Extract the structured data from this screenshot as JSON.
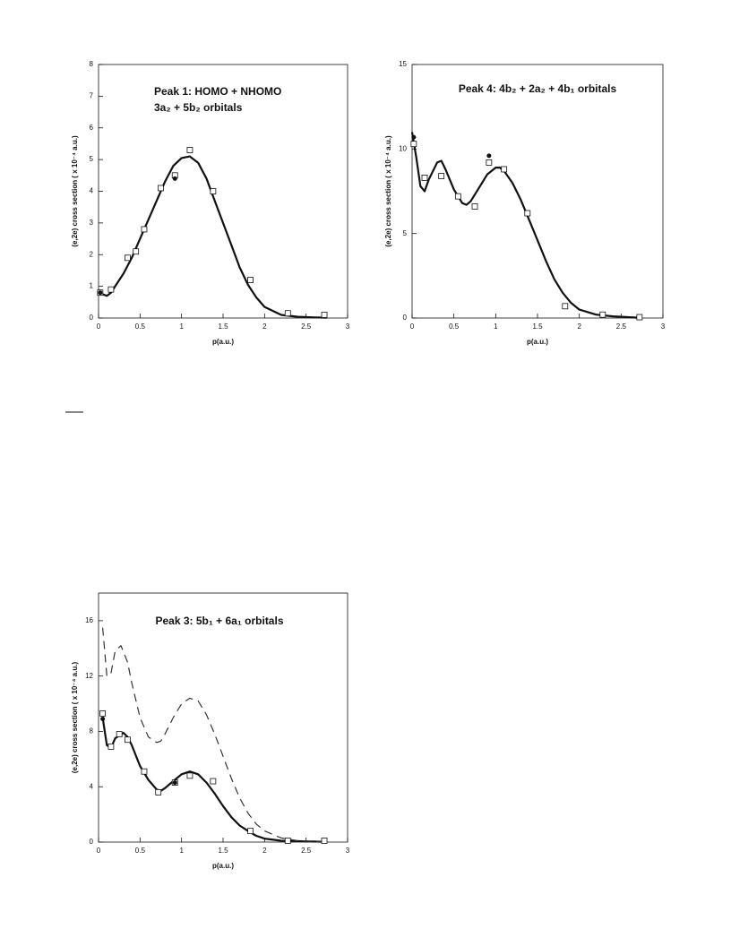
{
  "chart_data": [
    {
      "type": "line",
      "annotations": [
        "Peak 1: HOMO + NHOMO",
        "3a₂ + 5b₂ orbitals"
      ],
      "xlabel": "p(a.u.)",
      "ylabel": "(e,2e) cross section ( x 10⁻⁴ a.u.)",
      "xlim": [
        0,
        3
      ],
      "ylim": [
        0,
        8
      ],
      "xticks": [
        0,
        0.5,
        1,
        1.5,
        2,
        2.5,
        3
      ],
      "yticks": [
        0,
        1,
        2,
        3,
        4,
        5,
        6,
        7,
        8
      ],
      "series": [
        {
          "color": "#111111",
          "style": "solid",
          "x": [
            0,
            0.05,
            0.1,
            0.15,
            0.2,
            0.3,
            0.4,
            0.5,
            0.6,
            0.7,
            0.8,
            0.9,
            1.0,
            1.1,
            1.2,
            1.3,
            1.4,
            1.5,
            1.6,
            1.7,
            1.8,
            1.9,
            2.0,
            2.2,
            2.4,
            2.6,
            2.75
          ],
          "values": [
            0.8,
            0.75,
            0.7,
            0.8,
            1.0,
            1.4,
            1.9,
            2.5,
            3.1,
            3.7,
            4.3,
            4.8,
            5.05,
            5.1,
            4.9,
            4.4,
            3.7,
            3.0,
            2.3,
            1.6,
            1.05,
            0.65,
            0.35,
            0.1,
            0.04,
            0.02,
            0.01
          ]
        },
        {
          "color": "#111111",
          "marker": "square",
          "x": [
            0.02,
            0.15,
            0.35,
            0.45,
            0.55,
            0.75,
            0.92,
            1.1,
            1.38,
            1.83,
            2.28,
            2.72
          ],
          "values": [
            0.8,
            0.9,
            1.9,
            2.1,
            2.8,
            4.1,
            4.5,
            5.3,
            4.0,
            1.2,
            0.15,
            0.1
          ]
        },
        {
          "color": "#111111",
          "marker": "circle",
          "x": [
            0.02,
            0.92
          ],
          "values": [
            0.8,
            4.4
          ]
        }
      ]
    },
    {
      "type": "line",
      "annotations": [
        "Peak 4: 4b₂ + 2a₂ + 4b₁ orbitals"
      ],
      "xlabel": "p(a.u.)",
      "ylabel": "(e,2e) cross section ( x 10⁻⁴ a.u.)",
      "xlim": [
        0,
        3
      ],
      "ylim": [
        0,
        15
      ],
      "xticks": [
        0,
        0.5,
        1,
        1.5,
        2,
        2.5,
        3
      ],
      "yticks": [
        0,
        5,
        10,
        15
      ],
      "series": [
        {
          "color": "#111111",
          "style": "solid",
          "x": [
            0,
            0.05,
            0.1,
            0.15,
            0.2,
            0.3,
            0.35,
            0.4,
            0.5,
            0.6,
            0.65,
            0.7,
            0.8,
            0.9,
            1.0,
            1.05,
            1.1,
            1.2,
            1.3,
            1.4,
            1.5,
            1.6,
            1.7,
            1.8,
            1.9,
            2.0,
            2.2,
            2.4,
            2.7
          ],
          "values": [
            11,
            9.5,
            7.8,
            7.5,
            8.2,
            9.2,
            9.3,
            8.8,
            7.6,
            6.8,
            6.7,
            6.9,
            7.7,
            8.5,
            8.9,
            8.9,
            8.7,
            8.0,
            7.0,
            5.8,
            4.6,
            3.4,
            2.3,
            1.5,
            0.9,
            0.5,
            0.2,
            0.1,
            0.02
          ]
        },
        {
          "color": "#111111",
          "marker": "square",
          "x": [
            0.02,
            0.15,
            0.35,
            0.55,
            0.75,
            0.92,
            1.1,
            1.38,
            1.83,
            2.28,
            2.72
          ],
          "values": [
            10.3,
            8.3,
            8.4,
            7.2,
            6.6,
            9.2,
            8.8,
            6.2,
            0.7,
            0.2,
            0.05
          ]
        },
        {
          "color": "#111111",
          "marker": "circle",
          "x": [
            0.02,
            0.92
          ],
          "values": [
            10.7,
            9.6
          ]
        }
      ]
    },
    {
      "type": "line",
      "annotations": [
        "Peak 3: 5b₁ + 6a₁ orbitals"
      ],
      "xlabel": "p(a.u.)",
      "ylabel": "(e,2e) cross section ( x 10⁻⁴ a.u.)",
      "xlim": [
        0,
        3
      ],
      "ylim": [
        0,
        18
      ],
      "xticks": [
        0,
        0.5,
        1,
        1.5,
        2,
        2.5,
        3
      ],
      "yticks": [
        0,
        4,
        8,
        12,
        16
      ],
      "series": [
        {
          "color": "#111111",
          "style": "solid",
          "x": [
            0.05,
            0.1,
            0.15,
            0.2,
            0.3,
            0.35,
            0.4,
            0.5,
            0.6,
            0.7,
            0.75,
            0.8,
            0.9,
            1.0,
            1.1,
            1.2,
            1.3,
            1.4,
            1.5,
            1.6,
            1.7,
            1.8,
            1.9,
            2.0,
            2.2,
            2.5,
            2.75
          ],
          "values": [
            9,
            7,
            6.8,
            7.5,
            7.9,
            7.6,
            7,
            5.5,
            4.5,
            3.8,
            3.7,
            3.9,
            4.4,
            4.9,
            5.1,
            4.9,
            4.3,
            3.5,
            2.6,
            1.8,
            1.2,
            0.8,
            0.45,
            0.25,
            0.1,
            0.05,
            0.02
          ]
        },
        {
          "color": "#333333",
          "style": "dash",
          "x": [
            0.05,
            0.1,
            0.15,
            0.2,
            0.27,
            0.35,
            0.4,
            0.5,
            0.6,
            0.7,
            0.75,
            0.8,
            0.9,
            1.0,
            1.1,
            1.2,
            1.3,
            1.4,
            1.5,
            1.6,
            1.7,
            1.8,
            1.9,
            2.0,
            2.2,
            2.4,
            2.7
          ],
          "values": [
            15.5,
            12,
            12.2,
            13.8,
            14.2,
            13,
            11.5,
            9,
            7.6,
            7.2,
            7.3,
            7.8,
            9,
            10,
            10.4,
            10.2,
            9.2,
            7.8,
            6.2,
            4.6,
            3.2,
            2.1,
            1.3,
            0.8,
            0.3,
            0.1,
            0.03
          ]
        },
        {
          "color": "#111111",
          "marker": "square",
          "x": [
            0.05,
            0.15,
            0.25,
            0.35,
            0.55,
            0.72,
            0.92,
            1.1,
            1.38,
            1.83,
            2.28,
            2.72
          ],
          "values": [
            9.3,
            6.9,
            7.8,
            7.4,
            5.1,
            3.6,
            4.3,
            4.8,
            4.4,
            0.8,
            0.1,
            0.1
          ]
        },
        {
          "color": "#111111",
          "marker": "circle",
          "x": [
            0.05,
            0.92
          ],
          "values": [
            8.9,
            4.3
          ]
        }
      ]
    }
  ]
}
